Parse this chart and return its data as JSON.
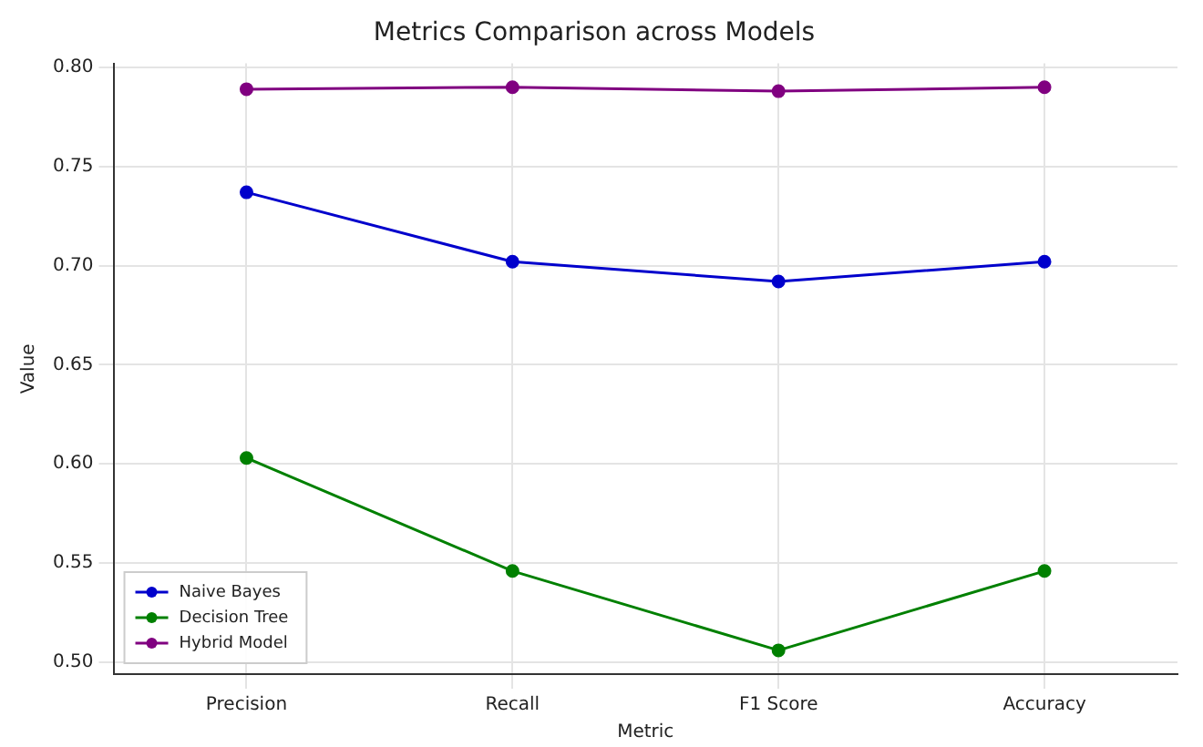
{
  "chart_data": {
    "type": "line",
    "title": "Metrics Comparison across Models",
    "xlabel": "Metric",
    "ylabel": "Value",
    "categories": [
      "Precision",
      "Recall",
      "F1 Score",
      "Accuracy"
    ],
    "series": [
      {
        "name": "Naive Bayes",
        "color": "#0000cc",
        "values": [
          0.737,
          0.702,
          0.692,
          0.702
        ]
      },
      {
        "name": "Decision Tree",
        "color": "#008000",
        "values": [
          0.603,
          0.546,
          0.506,
          0.546
        ]
      },
      {
        "name": "Hybrid Model",
        "color": "#800080",
        "values": [
          0.789,
          0.79,
          0.788,
          0.79
        ]
      }
    ],
    "ylim": [
      0.494,
      0.802
    ],
    "yticks": [
      {
        "value": 0.5,
        "label": "0.50"
      },
      {
        "value": 0.55,
        "label": "0.55"
      },
      {
        "value": 0.6,
        "label": "0.60"
      },
      {
        "value": 0.65,
        "label": "0.65"
      },
      {
        "value": 0.7,
        "label": "0.70"
      },
      {
        "value": 0.75,
        "label": "0.75"
      },
      {
        "value": 0.8,
        "label": "0.80"
      }
    ],
    "grid": true,
    "legend": "bottom left",
    "marker": "circle",
    "line_style": "solid"
  }
}
